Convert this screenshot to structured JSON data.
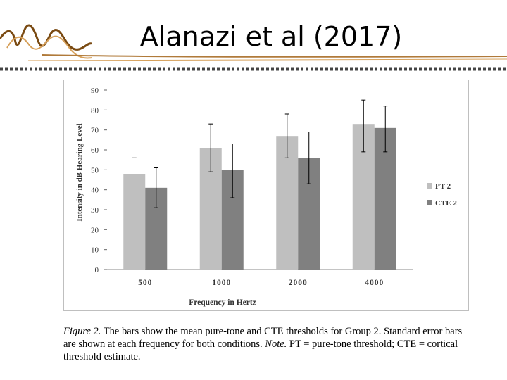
{
  "slide": {
    "title": "Alanazi et al (2017)"
  },
  "caption": {
    "fig_label": "Figure 2.",
    "text1": " The bars show the mean pure-tone and CTE thresholds for Group 2. Standard error bars are shown at each frequency for both conditions. ",
    "note_label": "Note.",
    "text2": " PT = pure-tone threshold; CTE = cortical threshold estimate."
  },
  "colors": {
    "pt2": "#bfbfbf",
    "cte2": "#808080",
    "frame": "#bfbfbf",
    "deco_brown": "#7a4a12",
    "deco_tan": "#d6a05a"
  },
  "chart_data": {
    "type": "bar",
    "xlabel": "Frequency in Hertz",
    "ylabel": "Intensity in dB Hearing Level",
    "ylim": [
      0,
      90
    ],
    "yticks": [
      0,
      10,
      20,
      30,
      40,
      50,
      60,
      70,
      80,
      90
    ],
    "categories": [
      "500",
      "1000",
      "2000",
      "4000"
    ],
    "series": [
      {
        "name": "PT 2",
        "values": [
          48,
          61,
          67,
          73
        ],
        "err_low": [
          null,
          49,
          56,
          59
        ],
        "err_high": [
          56,
          73,
          78,
          85
        ]
      },
      {
        "name": "CTE 2",
        "values": [
          41,
          50,
          56,
          71
        ],
        "err_low": [
          31,
          36,
          43,
          59
        ],
        "err_high": [
          51,
          63,
          69,
          82
        ]
      }
    ],
    "legend": "right",
    "grid": false
  }
}
